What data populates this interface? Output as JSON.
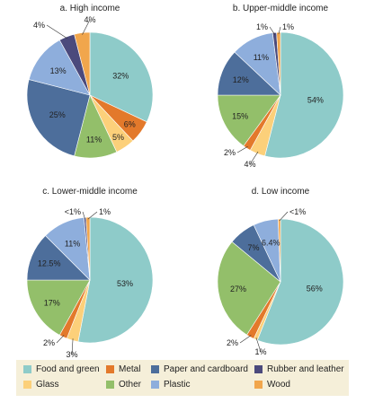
{
  "chart_data": [
    {
      "type": "pie",
      "title": "a. High income",
      "labels": [
        "Food and green",
        "Metal",
        "Glass",
        "Other",
        "Paper and cardboard",
        "Plastic",
        "Rubber and leather",
        "Wood"
      ],
      "values": [
        32,
        6,
        5,
        11,
        25,
        13,
        4,
        4
      ],
      "value_labels": [
        "32%",
        "6%",
        "5%",
        "11%",
        "25%",
        "13%",
        "4%",
        "4%"
      ]
    },
    {
      "type": "pie",
      "title": "b. Upper-middle income",
      "labels": [
        "Food and green",
        "Glass",
        "Metal",
        "Other",
        "Paper and cardboard",
        "Plastic",
        "Rubber and leather",
        "Wood"
      ],
      "values": [
        54,
        4,
        2,
        15,
        12,
        11,
        1,
        1
      ],
      "value_labels": [
        "54%",
        "4%",
        "2%",
        "15%",
        "12%",
        "11%",
        "1%",
        "1%"
      ]
    },
    {
      "type": "pie",
      "title": "c. Lower-middle income",
      "labels": [
        "Food and green",
        "Glass",
        "Metal",
        "Other",
        "Paper and cardboard",
        "Plastic",
        "Rubber and leather",
        "Wood"
      ],
      "values": [
        53,
        3,
        2,
        17,
        12.5,
        11,
        0.5,
        1
      ],
      "value_labels": [
        "53%",
        "3%",
        "2%",
        "17%",
        "12.5%",
        "11%",
        "<1%",
        "1%"
      ]
    },
    {
      "type": "pie",
      "title": "d. Low income",
      "labels": [
        "Food and green",
        "Glass",
        "Metal",
        "Other",
        "Paper and cardboard",
        "Plastic",
        "Wood"
      ],
      "values": [
        56,
        1,
        2,
        27,
        7,
        6.4,
        0.6
      ],
      "value_labels": [
        "56%",
        "1%",
        "2%",
        "27%",
        "7%",
        "6.4%",
        "<1%"
      ]
    }
  ],
  "colors": {
    "Food and green": "#8ecbc9",
    "Glass": "#fcd07a",
    "Metal": "#e3792b",
    "Other": "#93bf6a",
    "Paper and cardboard": "#4d6e9b",
    "Plastic": "#8eaedc",
    "Rubber and leather": "#4b4a7c",
    "Wood": "#f1a64c"
  },
  "legend": {
    "items": [
      {
        "label": "Food and green",
        "color": "#8ecbc9"
      },
      {
        "label": "Metal",
        "color": "#e3792b"
      },
      {
        "label": "Paper and cardboard",
        "color": "#4d6e9b"
      },
      {
        "label": "Rubber and leather",
        "color": "#4b4a7c"
      },
      {
        "label": "Glass",
        "color": "#fcd07a"
      },
      {
        "label": "Other",
        "color": "#93bf6a"
      },
      {
        "label": "Plastic",
        "color": "#8eaedc"
      },
      {
        "label": "Wood",
        "color": "#f1a64c"
      }
    ]
  }
}
